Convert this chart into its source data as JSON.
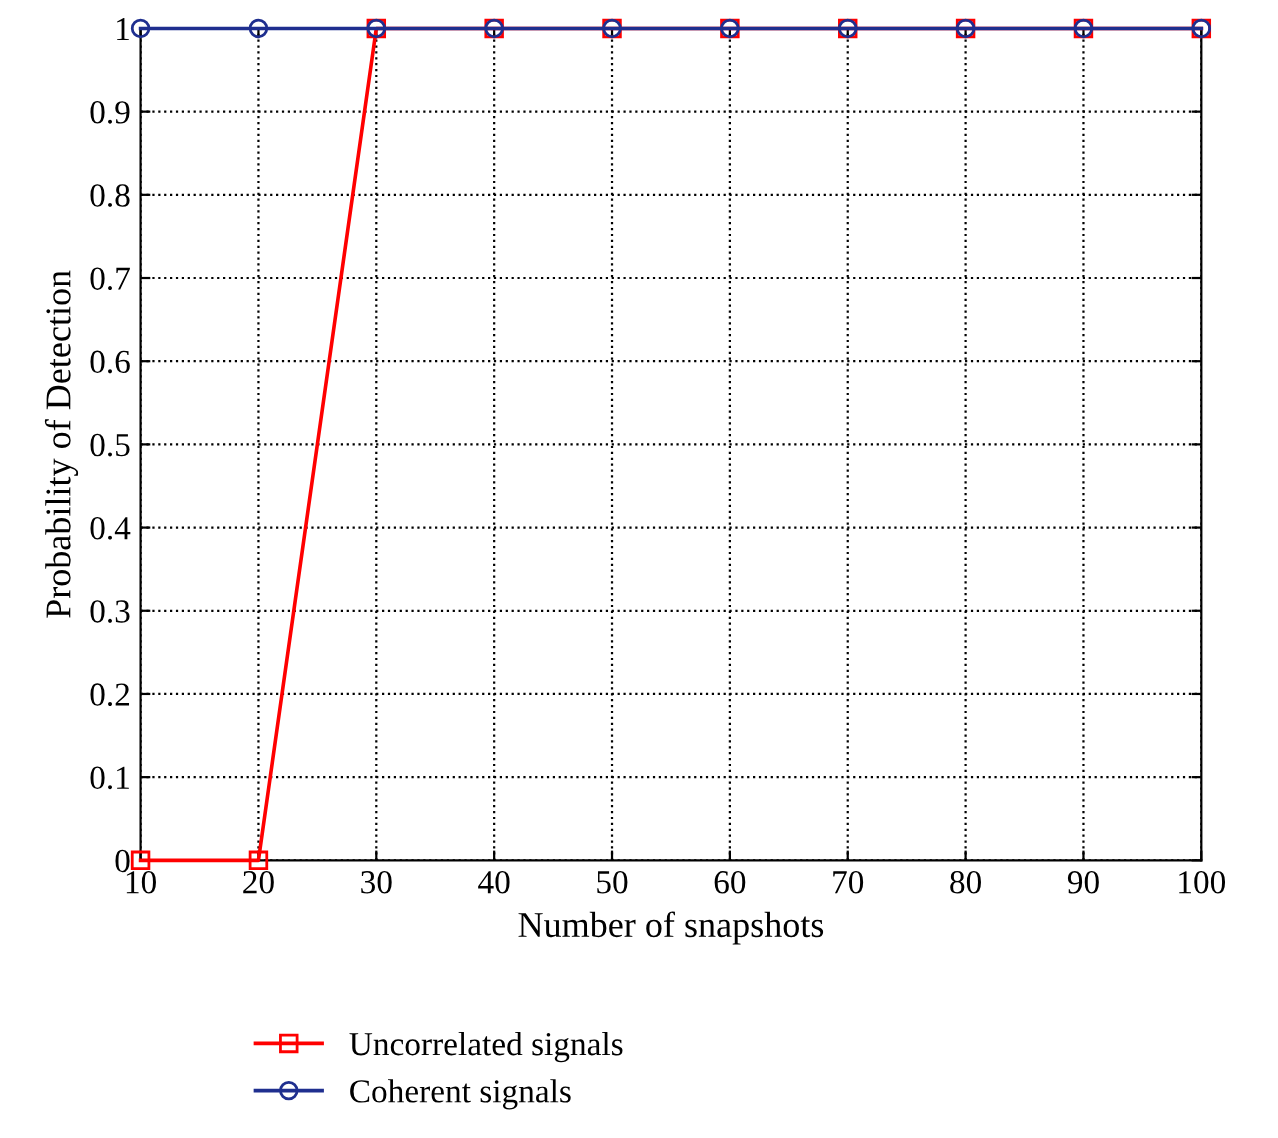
{
  "chart_data": {
    "type": "line",
    "xlabel": "Number of snapshots",
    "ylabel": "Probability of Detection",
    "x": [
      10,
      20,
      30,
      40,
      50,
      60,
      70,
      80,
      90,
      100
    ],
    "series": [
      {
        "name": "Uncorrelated signals",
        "color": "#ff0000",
        "marker": "square",
        "values": [
          0,
          0,
          1,
          1,
          1,
          1,
          1,
          1,
          1,
          1
        ]
      },
      {
        "name": "Coherent signals",
        "color": "#1f2f8f",
        "marker": "circle",
        "values": [
          1,
          1,
          1,
          1,
          1,
          1,
          1,
          1,
          1,
          1
        ]
      }
    ],
    "xlim": [
      10,
      100
    ],
    "xticks": [
      10,
      20,
      30,
      40,
      50,
      60,
      70,
      80,
      90,
      100
    ],
    "ylim": [
      0,
      1
    ],
    "yticks": [
      0,
      0.1,
      0.2,
      0.3,
      0.4,
      0.5,
      0.6,
      0.7,
      0.8,
      0.9,
      1
    ],
    "grid": true,
    "legend": "bottom left",
    "line_style": "solid"
  }
}
